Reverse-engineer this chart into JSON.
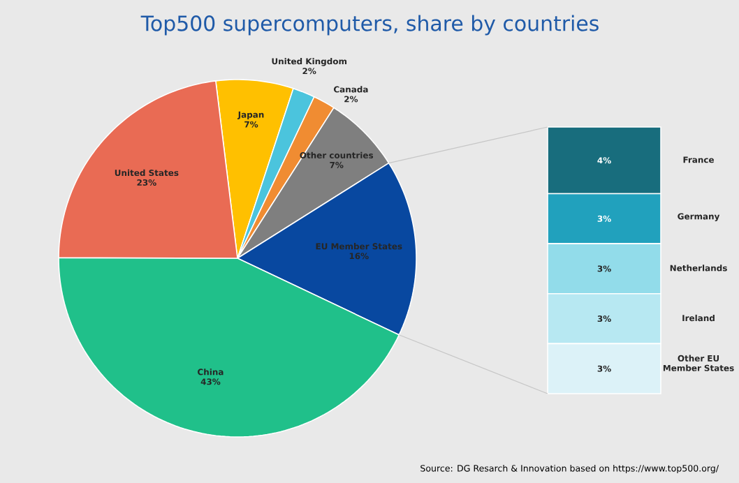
{
  "chart_data": [
    {
      "type": "pie",
      "title": "Top500 supercomputers, share by countries",
      "categories": [
        "Japan",
        "United Kingdom",
        "Canada",
        "Other countries",
        "EU Member States",
        "China",
        "United States"
      ],
      "values": [
        7,
        2,
        2,
        7,
        16,
        43,
        23
      ],
      "value_labels": [
        "7%",
        "2%",
        "2%",
        "7%",
        "16%",
        "43%",
        "23%"
      ],
      "colors": [
        "#ffc000",
        "#4bc4dd",
        "#f08c32",
        "#7f7f7f",
        "#0848a0",
        "#20c08a",
        "#e96b54"
      ],
      "annotations": [
        "Source: DG Resarch & Innovation based on https://www.top500.org/"
      ]
    },
    {
      "type": "bar",
      "stacked": true,
      "categories": [
        null
      ],
      "series": [
        {
          "name": "Other EU Member States",
          "color": "#dcf2f8",
          "values": [
            3
          ],
          "value_labels": [
            "3%"
          ]
        },
        {
          "name": "Ireland",
          "color": "#b7e8f2",
          "values": [
            3
          ],
          "value_labels": [
            "3%"
          ]
        },
        {
          "name": "Netherlands",
          "color": "#92dcea",
          "values": [
            3
          ],
          "value_labels": [
            "3%"
          ]
        },
        {
          "name": "Germany",
          "color": "#21a1bd",
          "values": [
            3
          ],
          "value_labels": [
            "3%"
          ]
        },
        {
          "name": "France",
          "color": "#186d7d",
          "values": [
            4
          ],
          "value_labels": [
            "4%"
          ]
        }
      ]
    }
  ]
}
